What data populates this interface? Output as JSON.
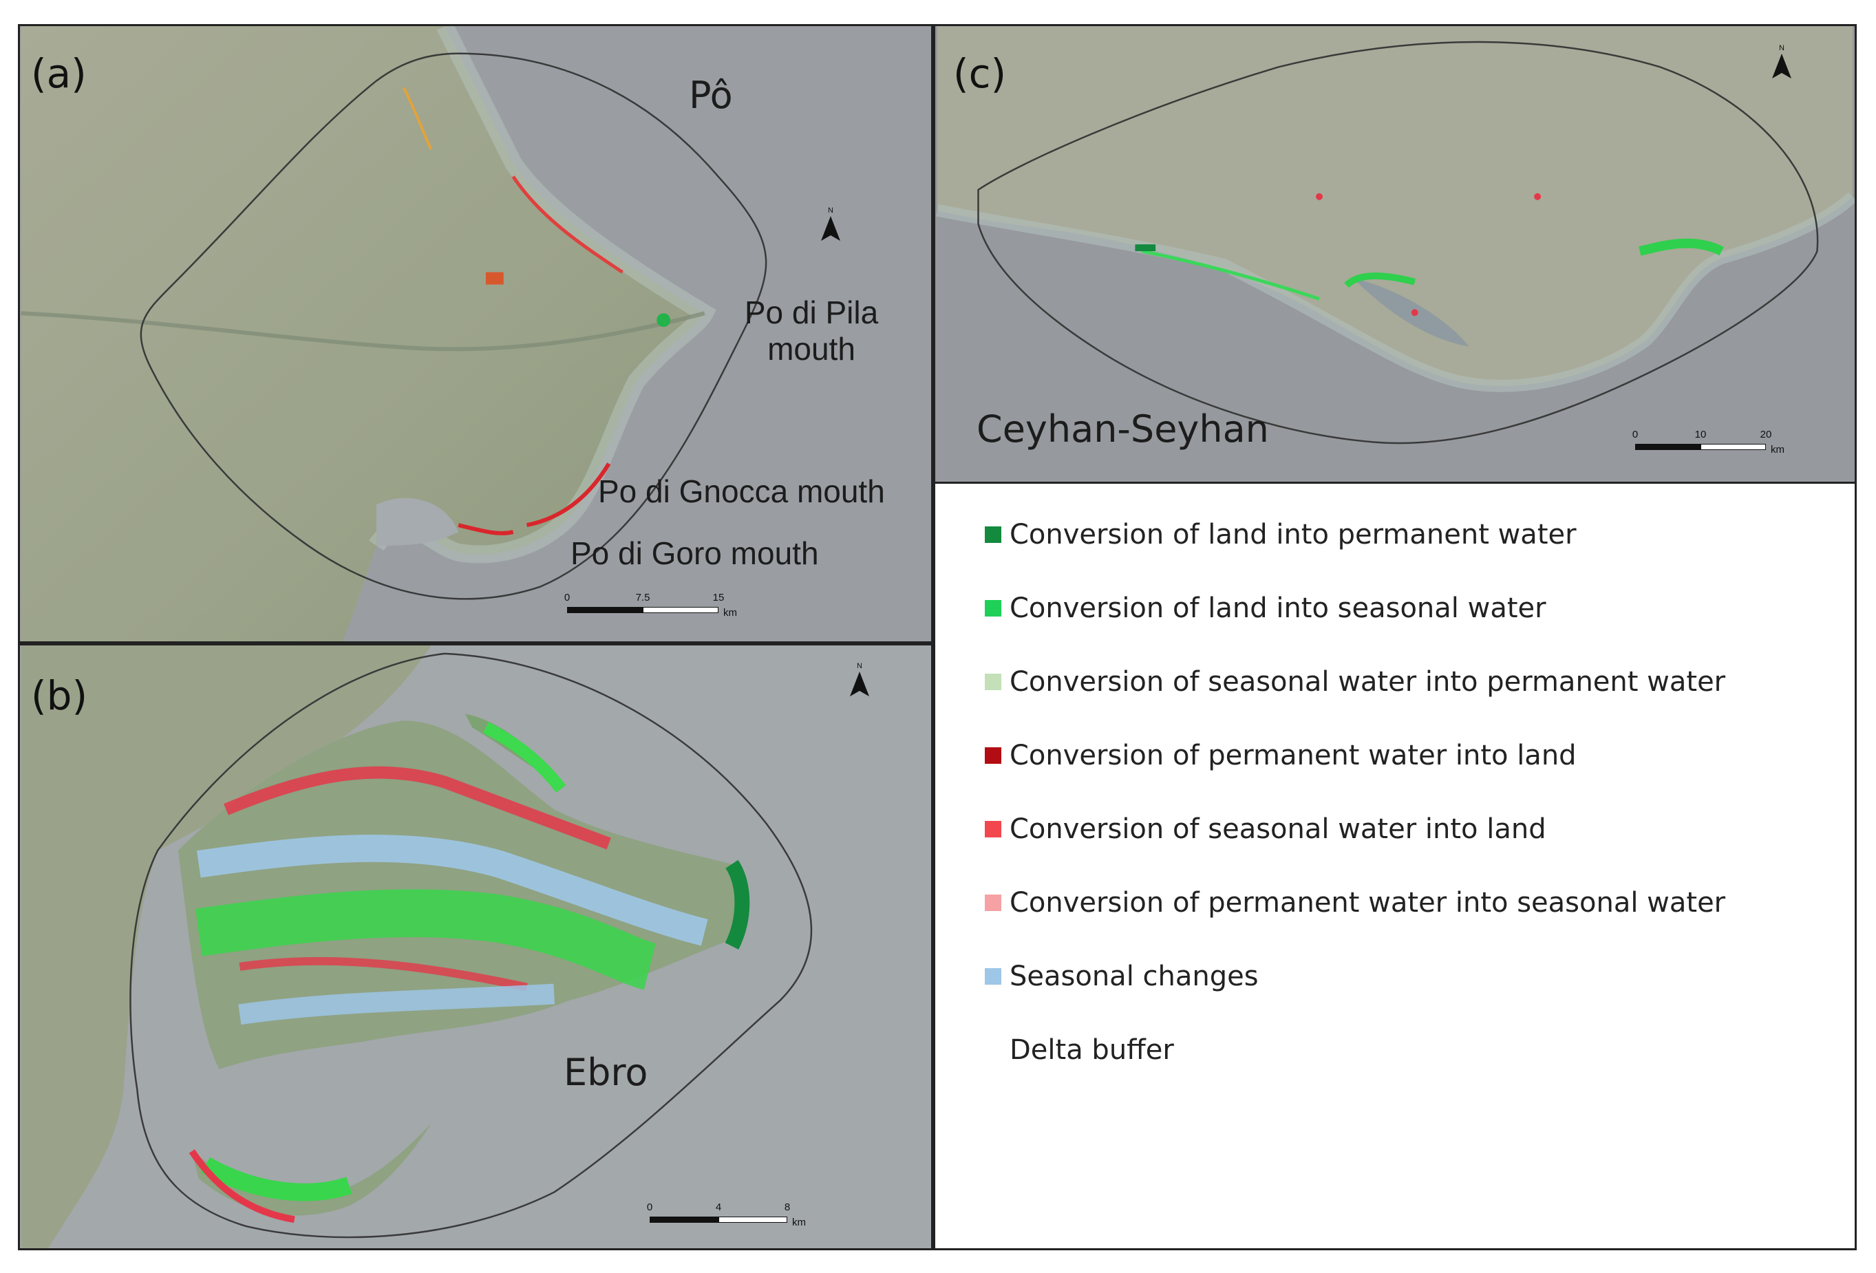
{
  "panels": {
    "a": {
      "label": "(a)",
      "places": {
        "delta": "Pô",
        "pila": "Po di Pila\nmouth",
        "gnocca": "Po di Gnocca mouth",
        "goro": "Po di Goro mouth"
      },
      "scale": {
        "ticks": [
          "0",
          "7.5",
          "15"
        ],
        "unit": "km"
      },
      "north": "N"
    },
    "b": {
      "label": "(b)",
      "places": {
        "delta": "Ebro"
      },
      "scale": {
        "ticks": [
          "0",
          "4",
          "8"
        ],
        "unit": "km"
      },
      "north": "N"
    },
    "c": {
      "label": "(c)",
      "places": {
        "delta": "Ceyhan-Seyhan"
      },
      "scale": {
        "ticks": [
          "0",
          "10",
          "20"
        ],
        "unit": "km"
      },
      "north": "N"
    }
  },
  "legend": {
    "items": [
      {
        "label": "Conversion of land into permanent water",
        "color": "#138a3e"
      },
      {
        "label": "Conversion of land into seasonal water",
        "color": "#1fd058"
      },
      {
        "label": "Conversion of seasonal water into permanent water",
        "color": "#c3e0b8"
      },
      {
        "label": "Conversion of permanent water into land",
        "color": "#b20d12"
      },
      {
        "label": "Conversion of seasonal water into land",
        "color": "#f2484d"
      },
      {
        "label": "Conversion of permanent water into seasonal water",
        "color": "#f6a1a3"
      },
      {
        "label": "Seasonal changes",
        "color": "#9ec6e6"
      },
      {
        "label": "Delta buffer",
        "color": null
      }
    ]
  },
  "colors": {
    "land": "#9ea48a",
    "sea": "#9aa0a6",
    "buffer_outline": "#3a3a3a"
  }
}
